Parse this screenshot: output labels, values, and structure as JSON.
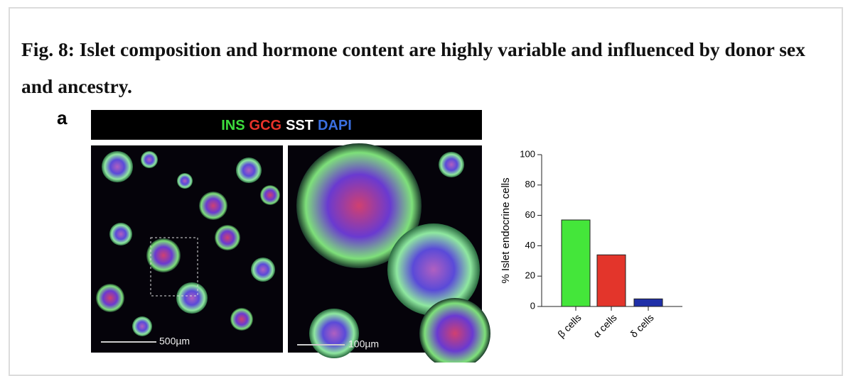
{
  "figure": {
    "title": "Fig. 8: Islet composition and hormone content are highly variable and influenced by donor sex and ancestry.",
    "panel_label": "a",
    "legend": [
      {
        "text": "INS",
        "color": "#3ddc3d"
      },
      {
        "text": "GCG",
        "color": "#e8332a"
      },
      {
        "text": "SST",
        "color": "#ffffff"
      },
      {
        "text": "DAPI",
        "color": "#3a6fe0"
      }
    ],
    "scale_bars": [
      "500µm",
      "100µm"
    ]
  },
  "chart_data": {
    "type": "bar",
    "ylabel": "% Islet endocrine cells",
    "categories": [
      "β cells",
      "α cells",
      "δ cells"
    ],
    "values": [
      57,
      34,
      5
    ],
    "colors": [
      "#44e63a",
      "#e3352b",
      "#1f2fa8"
    ],
    "ylim": [
      0,
      100
    ],
    "yticks": [
      0,
      20,
      40,
      60,
      80,
      100
    ]
  }
}
